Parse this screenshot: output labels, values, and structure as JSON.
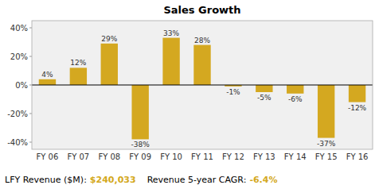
{
  "chart_data": {
    "type": "bar",
    "title": "Sales Growth",
    "categories": [
      "FY 06",
      "FY 07",
      "FY 08",
      "FY 09",
      "FY 10",
      "FY 11",
      "FY 12",
      "FY 13",
      "FY 14",
      "FY 15",
      "FY 16"
    ],
    "values": [
      4,
      12,
      29,
      -38,
      33,
      28,
      -1,
      -5,
      -6,
      -37,
      -12
    ],
    "value_labels": [
      "4%",
      "12%",
      "29%",
      "-38%",
      "33%",
      "28%",
      "-1%",
      "-5%",
      "-6%",
      "-37%",
      "-12%"
    ],
    "data_labels": true,
    "color": "#D4A820",
    "ylim": [
      -45,
      45
    ],
    "yticks": [
      {
        "value": -40,
        "label": "-40%"
      },
      {
        "value": -20,
        "label": "-20%"
      },
      {
        "value": 0,
        "label": "0%"
      },
      {
        "value": 20,
        "label": "20%"
      },
      {
        "value": 40,
        "label": "40%"
      }
    ],
    "grid": false,
    "annotations": [
      "LFY Revenue ($M):",
      "$240,033",
      "Revenue 5-year CAGR:",
      "-6.4%"
    ]
  }
}
